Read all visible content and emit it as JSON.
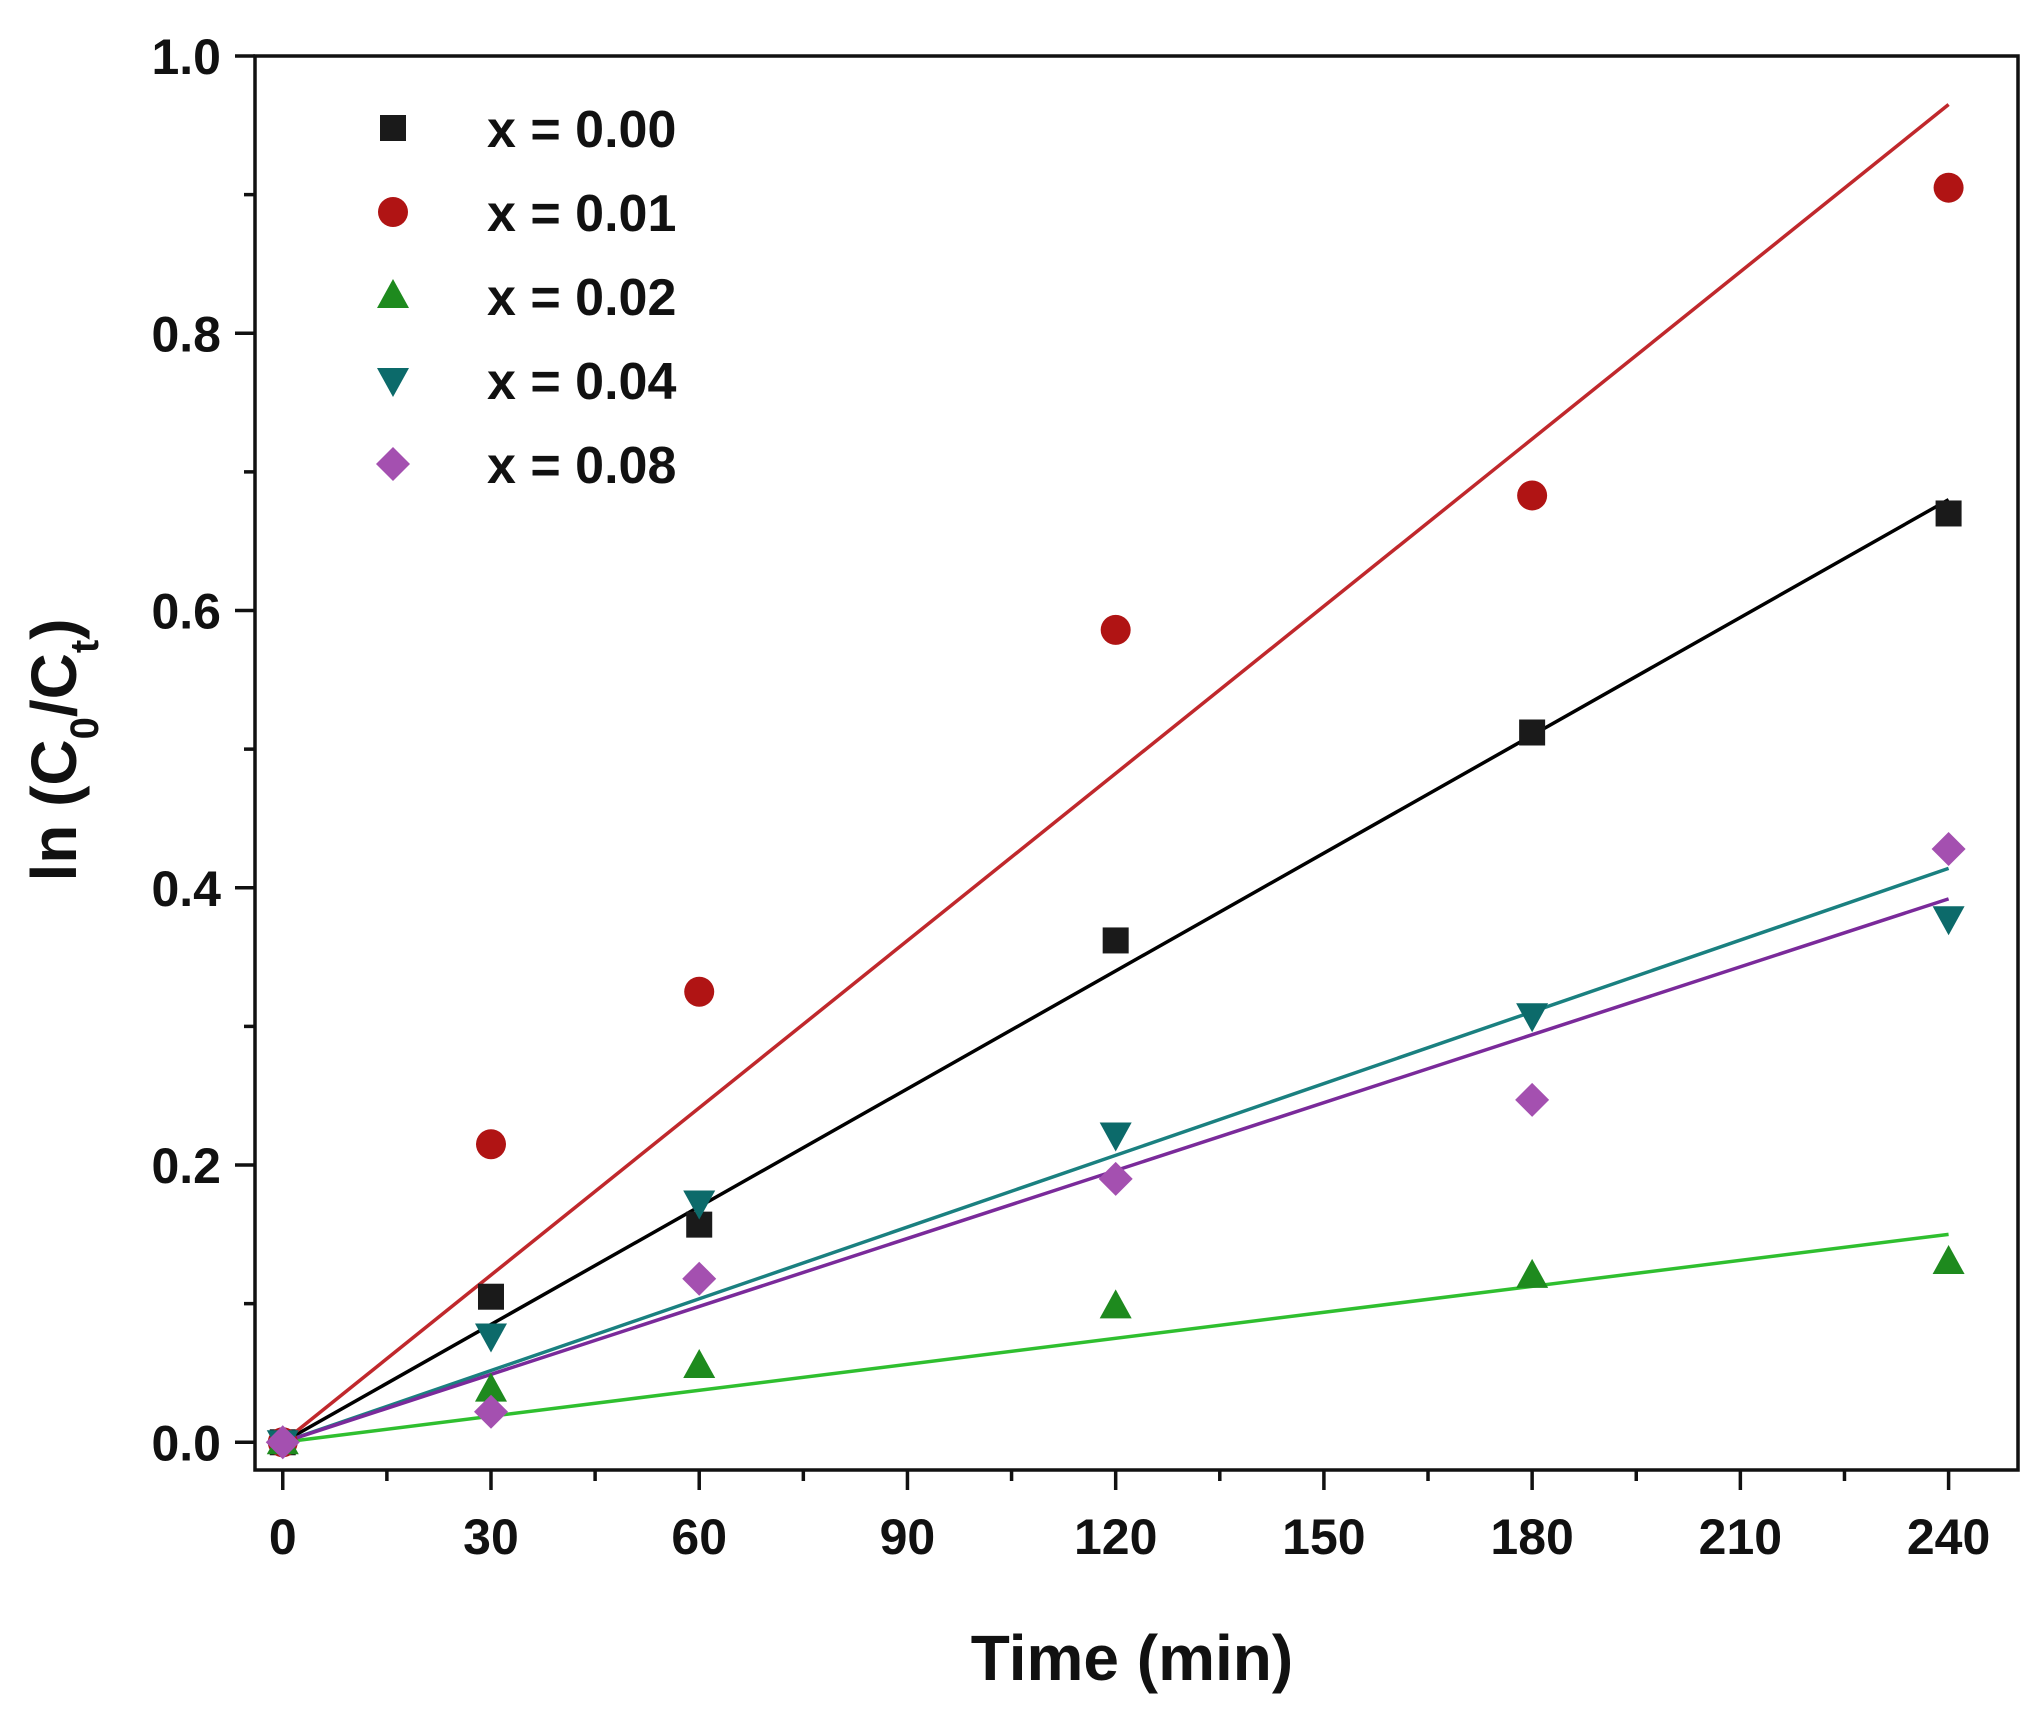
{
  "chart_data": {
    "type": "scatter",
    "title": "",
    "xlabel": "Time (min)",
    "ylabel": {
      "prefix": "ln (C",
      "sub1": "0",
      "mid": "/C",
      "sub2": "t",
      "suffix": ")"
    },
    "xlim": [
      -4,
      250
    ],
    "ylim": [
      -0.02,
      1.0
    ],
    "x_major_ticks": [
      0,
      30,
      60,
      90,
      120,
      150,
      180,
      210,
      240
    ],
    "x_tick_labels": [
      "0",
      "30",
      "60",
      "90",
      "120",
      "150",
      "180",
      "210",
      "240"
    ],
    "x_minor_ticks": [
      15,
      45,
      75,
      105,
      135,
      165,
      195,
      225
    ],
    "y_major_ticks": [
      0.0,
      0.2,
      0.4,
      0.6,
      0.8,
      1.0
    ],
    "y_tick_labels": [
      "0.0",
      "0.2",
      "0.4",
      "0.6",
      "0.8",
      "1.0"
    ],
    "y_minor_ticks": [
      0.1,
      0.3,
      0.5,
      0.7,
      0.9
    ],
    "grid": false,
    "legend_position": "top-left",
    "series": [
      {
        "name": "x = 0.00",
        "marker": "square",
        "color": "#1a1a1a",
        "line_color": "#000000",
        "x": [
          0,
          30,
          60,
          120,
          180,
          240
        ],
        "y": [
          0.0,
          0.105,
          0.157,
          0.362,
          0.512,
          0.67
        ],
        "fit": [
          [
            0,
            0.0
          ],
          [
            240,
            0.68
          ]
        ]
      },
      {
        "name": "x = 0.01",
        "marker": "circle",
        "color": "#b01414",
        "line_color": "#c0282c",
        "x": [
          0,
          30,
          60,
          120,
          180,
          240
        ],
        "y": [
          0.0,
          0.215,
          0.325,
          0.586,
          0.683,
          0.905
        ],
        "fit": [
          [
            0,
            0.0
          ],
          [
            240,
            0.965
          ]
        ]
      },
      {
        "name": "x = 0.02",
        "marker": "triangle-up",
        "color": "#1e8a1e",
        "line_color": "#2fbf2f",
        "x": [
          0,
          30,
          60,
          120,
          180,
          240
        ],
        "y": [
          0.0,
          0.038,
          0.055,
          0.098,
          0.12,
          0.13
        ],
        "fit": [
          [
            0,
            0.0
          ],
          [
            240,
            0.15
          ]
        ]
      },
      {
        "name": "x = 0.04",
        "marker": "triangle-down",
        "color": "#0c6a6a",
        "line_color": "#1a8080",
        "x": [
          0,
          30,
          60,
          120,
          180,
          240
        ],
        "y": [
          0.0,
          0.077,
          0.173,
          0.222,
          0.308,
          0.378
        ],
        "fit": [
          [
            0,
            0.0
          ],
          [
            240,
            0.414
          ]
        ]
      },
      {
        "name": "x = 0.08",
        "marker": "diamond",
        "color": "#a450b0",
        "line_color": "#7a2a9a",
        "x": [
          0,
          30,
          60,
          120,
          180,
          240
        ],
        "y": [
          0.0,
          0.022,
          0.118,
          0.19,
          0.247,
          0.428
        ],
        "fit": [
          [
            0,
            0.0
          ],
          [
            240,
            0.392
          ]
        ]
      }
    ]
  }
}
